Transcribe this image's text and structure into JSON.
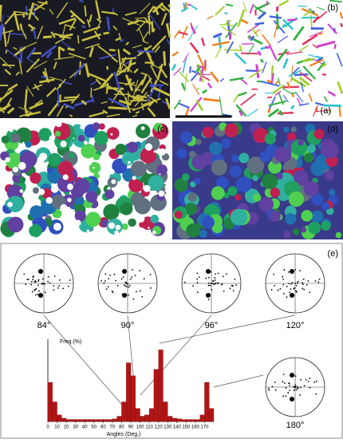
{
  "panel_labels": [
    "(a)",
    "(b)",
    "(c)",
    "(d)",
    "(e)"
  ],
  "pole_figures": [
    "84°",
    "90°",
    "96°",
    "120°",
    "180°"
  ],
  "chart_data": {
    "type": "histogram",
    "y_label": "Freq.(%)",
    "x_label": "Angles (Deg.)",
    "bins": [
      0,
      5,
      10,
      15,
      20,
      25,
      30,
      35,
      40,
      45,
      50,
      55,
      60,
      65,
      70,
      75,
      80,
      85,
      90,
      95,
      100,
      105,
      110,
      115,
      120,
      125,
      130,
      135,
      140,
      145,
      150,
      155,
      160,
      165,
      170,
      175,
      180
    ],
    "values": [
      6,
      3,
      1,
      0.5,
      0.3,
      0.3,
      0.3,
      0.3,
      0.3,
      0.3,
      0.3,
      0.3,
      0.3,
      0.3,
      0.4,
      0.8,
      3,
      9,
      7,
      2,
      0.8,
      1,
      2,
      8,
      11,
      3,
      0.8,
      0.5,
      0.4,
      0.3,
      0.3,
      0.3,
      0.3,
      1,
      6,
      2
    ],
    "color": "#b01515",
    "xlim": [
      0,
      180
    ],
    "ylim": [
      0,
      12
    ],
    "xticks": [
      0,
      10,
      20,
      30,
      40,
      50,
      60,
      70,
      80,
      90,
      100,
      110,
      120,
      130,
      140,
      150,
      160,
      170
    ]
  }
}
